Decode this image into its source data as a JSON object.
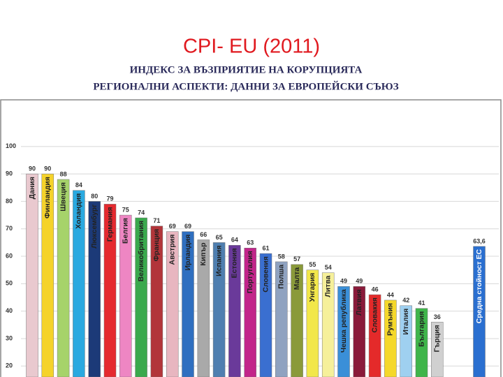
{
  "chart_data": {
    "type": "bar",
    "title": "CPI- EU (2011)",
    "subtitle": [
      "ИНДЕКС ЗА ВЪЗПРИЯТИЕ НА КОРУПЦИЯТА",
      "РЕГИОНАЛНИ АСПЕКТИ: ДАННИ ЗА ЕВРОПЕЙСКИ СЪЮЗ"
    ],
    "categories": [
      "Дания",
      "Финландия",
      "Швеция",
      "Холандия",
      "Люксембург",
      "Германия",
      "Белгия",
      "Великобритания",
      "Франция",
      "Австрия",
      "Ирландия",
      "Кипър",
      "Испания",
      "Естония",
      "Португалия",
      "Словения",
      "Полша",
      "Малта",
      "Унгария",
      "Литва",
      "Чешка република",
      "Латвия",
      "Словакия",
      "Румъния",
      "Италия",
      "България",
      "Гърция",
      "Средна стойност ЕС"
    ],
    "values": [
      90,
      90,
      88,
      84,
      80,
      79,
      75,
      74,
      71,
      69,
      69,
      66,
      65,
      64,
      63,
      61,
      58,
      57,
      55,
      54,
      49,
      49,
      46,
      44,
      42,
      41,
      36,
      63.6
    ],
    "value_labels": [
      "90",
      "90",
      "88",
      "84",
      "80",
      "79",
      "75",
      "74",
      "71",
      "69",
      "69",
      "66",
      "65",
      "64",
      "63",
      "61",
      "58",
      "57",
      "55",
      "54",
      "49",
      "49",
      "46",
      "44",
      "42",
      "41",
      "36",
      "63,6"
    ],
    "colors": [
      "#e9c9cf",
      "#f5d32a",
      "#a6d36a",
      "#2aa9e0",
      "#1c3a78",
      "#e52a2f",
      "#ee86c3",
      "#3aa94d",
      "#b2353a",
      "#e8b6c0",
      "#2f6fc0",
      "#a9a9a9",
      "#4f7fb0",
      "#6a3a9a",
      "#c2258a",
      "#3a6fd0",
      "#8fa2c0",
      "#8a9a3a",
      "#f2e74a",
      "#f6f09a",
      "#3a8fd8",
      "#8a1a3a",
      "#e42a2a",
      "#f5d82a",
      "#9fd0f0",
      "#3fb54a",
      "#d0d0d0",
      "#2a6fd0"
    ],
    "ylim": [
      16,
      117
    ],
    "yticks": [
      20,
      30,
      40,
      50,
      60,
      70,
      80,
      90,
      100
    ],
    "grid": true
  }
}
